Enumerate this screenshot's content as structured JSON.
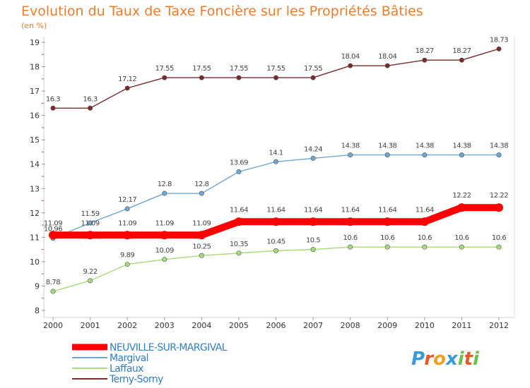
{
  "chart_data": {
    "type": "line",
    "title": "Evolution du Taux de Taxe Foncière sur les Propriétés Bâties",
    "subtitle": "(en %)",
    "xlabel": "",
    "ylabel": "",
    "ylim": [
      8,
      19
    ],
    "grid": false,
    "x": [
      2000,
      2001,
      2002,
      2003,
      2004,
      2005,
      2006,
      2007,
      2008,
      2009,
      2010,
      2011,
      2012
    ],
    "x_labels": [
      "2000",
      "2001",
      "2002",
      "2003",
      "2004",
      "2005",
      "2006",
      "2007",
      "2008",
      "2009",
      "2010",
      "2011",
      "2012"
    ],
    "y_ticks": [
      8,
      9,
      10,
      11,
      12,
      13,
      14,
      15,
      16,
      17,
      18,
      19
    ],
    "y_tick_labels": [
      "8",
      "9",
      "10",
      "11",
      "12",
      "13",
      "14",
      "15",
      "16",
      "17",
      "18",
      "19"
    ],
    "series": [
      {
        "name": "NEUVILLE-SUR-MARGIVAL",
        "color": "#ff0000",
        "values": [
          11.09,
          11.09,
          11.09,
          11.09,
          11.09,
          11.64,
          11.64,
          11.64,
          11.64,
          11.64,
          11.64,
          12.22,
          12.22
        ],
        "labels": [
          "11.09",
          "11.09",
          "11.09",
          "11.09",
          "11.09",
          "11.64",
          "11.64",
          "11.64",
          "11.64",
          "11.64",
          "11.64",
          "12.22",
          "12.22"
        ]
      },
      {
        "name": "Margival",
        "color": "#6ea7d4",
        "values": [
          10.96,
          11.59,
          12.17,
          12.8,
          12.8,
          13.69,
          14.1,
          14.24,
          14.38,
          14.38,
          14.38,
          14.38,
          14.38
        ],
        "labels": [
          "10.96",
          "11.59",
          "12.17",
          "12.8",
          "12.8",
          "13.69",
          "14.1",
          "14.24",
          "14.38",
          "14.38",
          "14.38",
          "14.38",
          "14.38"
        ]
      },
      {
        "name": "Laffaux",
        "color": "#a6dc78",
        "values": [
          8.78,
          9.22,
          9.89,
          10.09,
          10.25,
          10.35,
          10.45,
          10.5,
          10.6,
          10.6,
          10.6,
          10.6,
          10.6
        ],
        "labels": [
          "8.78",
          "9.22",
          "9.89",
          "10.09",
          "10.25",
          "10.35",
          "10.45",
          "10.5",
          "10.6",
          "10.6",
          "10.6",
          "10.6",
          "10.6"
        ]
      },
      {
        "name": "Terny-Sorny",
        "color": "#7b2a2a",
        "values": [
          16.3,
          16.3,
          17.12,
          17.55,
          17.55,
          17.55,
          17.55,
          17.55,
          18.04,
          18.04,
          18.27,
          18.27,
          18.73
        ],
        "labels": [
          "16.3",
          "16.3",
          "17.12",
          "17.55",
          "17.55",
          "17.55",
          "17.55",
          "17.55",
          "18.04",
          "18.04",
          "18.27",
          "18.27",
          "18.73"
        ]
      }
    ],
    "legend": {
      "position": "bottom-left",
      "entries": [
        "NEUVILLE-SUR-MARGIVAL",
        "Margival",
        "Laffaux",
        "Terny-Sorny"
      ]
    }
  },
  "brand": {
    "letters": [
      "P",
      "r",
      "o",
      "x",
      "i",
      "t",
      "i"
    ],
    "colors": [
      "#3a9ad9",
      "#e9572a",
      "#f0a020",
      "#3a9ad9",
      "#6cc04a",
      "#e9572a",
      "#6cc04a"
    ]
  }
}
